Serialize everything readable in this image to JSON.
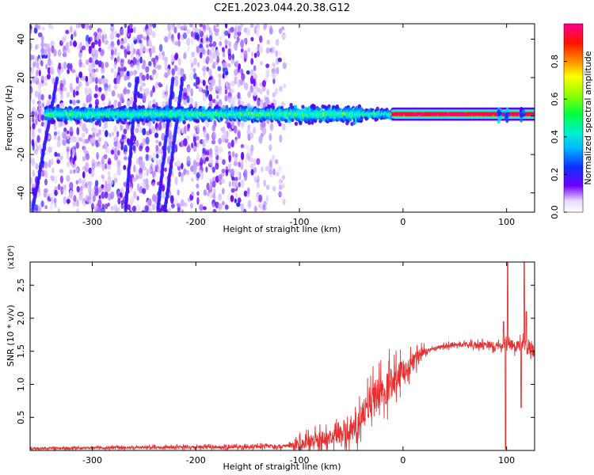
{
  "title": "C2E1.2023.044.20.38.G12",
  "colors": {
    "spectrogram_low": "#7000ff",
    "line": "#e83030",
    "axis": "#000000"
  },
  "chart_data": [
    {
      "type": "heatmap",
      "xlabel": "Height of straight line (km)",
      "ylabel": "Frequency (Hz)",
      "xlim": [
        -360,
        127
      ],
      "ylim": [
        -50,
        48
      ],
      "x_ticks": [
        -300,
        -200,
        -100,
        0,
        100
      ],
      "x_tick_labels": [
        "-300",
        "-200",
        "-100",
        "0",
        "100"
      ],
      "y_ticks": [
        -40,
        -20,
        0,
        20,
        40
      ],
      "y_tick_labels": [
        "-40",
        "-20",
        "0",
        "20",
        "40"
      ],
      "colorbar": {
        "label": "Normalized spectral amplitude",
        "range": [
          0,
          1
        ],
        "ticks": [
          0.0,
          0.2,
          0.4,
          0.6,
          0.8
        ],
        "tick_labels": [
          "0.0",
          "0.2",
          "0.4",
          "0.6",
          "0.8"
        ],
        "colormap": "rainbow (violet to magenta)"
      },
      "features": {
        "noise_region_x": [
          -360,
          -115
        ],
        "carrier_x": [
          -345,
          127
        ],
        "carrier_frequency_hz": 1,
        "strong_carrier_x": [
          -10,
          127
        ],
        "oblique_streaks": [
          {
            "x_top": -334,
            "x_bottom": -358
          },
          {
            "x_top": -257,
            "x_bottom": -268
          },
          {
            "x_top": -222,
            "x_bottom": -237
          },
          {
            "x_top": -213,
            "x_bottom": -230
          }
        ]
      }
    },
    {
      "type": "line",
      "xlabel": "Height of straight line (km)",
      "ylabel": "SNR (10 * v/v)",
      "y_multiplier_label": "(x10⁴)",
      "xlim": [
        -360,
        127
      ],
      "ylim": [
        0,
        2.85
      ],
      "y_units": "x10^4",
      "x_ticks": [
        -300,
        -200,
        -100,
        0,
        100
      ],
      "x_tick_labels": [
        "-300",
        "-200",
        "-100",
        "0",
        "100"
      ],
      "y_ticks": [
        0.5,
        1.0,
        1.5,
        2.0,
        2.5
      ],
      "y_tick_labels": [
        "0.5",
        "1.0",
        "1.5",
        "2.0",
        "2.5"
      ],
      "series": [
        {
          "color": "#e83030",
          "envelope_x": [
            -360,
            -300,
            -200,
            -120,
            -100,
            -90,
            -75,
            -60,
            -45,
            -40,
            -30,
            -20,
            -10,
            0,
            10,
            20,
            30,
            50,
            70,
            90,
            95,
            100,
            105,
            110,
            115,
            120,
            127
          ],
          "envelope_y": [
            0.03,
            0.04,
            0.05,
            0.06,
            0.09,
            0.15,
            0.2,
            0.22,
            0.28,
            0.5,
            0.75,
            0.9,
            1.05,
            1.2,
            1.35,
            1.5,
            1.55,
            1.6,
            1.6,
            1.58,
            1.55,
            1.6,
            1.6,
            1.58,
            1.6,
            1.55,
            1.52
          ],
          "noise_amplitude_x": [
            -360,
            -110,
            -100,
            -60,
            -40,
            -20,
            -5,
            10,
            25,
            90,
            127
          ],
          "noise_amplitude_y": [
            0.02,
            0.04,
            0.12,
            0.2,
            0.3,
            0.4,
            0.3,
            0.2,
            0.03,
            0.08,
            0.15
          ],
          "spikes": [
            {
              "x": 99,
              "y": 0.02
            },
            {
              "x": 101,
              "y": 2.85
            },
            {
              "x": 114,
              "y": 0.65
            },
            {
              "x": 117,
              "y": 2.85
            },
            {
              "x": 119,
              "y": 2.1
            },
            {
              "x": 97,
              "y": 1.95
            }
          ]
        }
      ]
    }
  ]
}
